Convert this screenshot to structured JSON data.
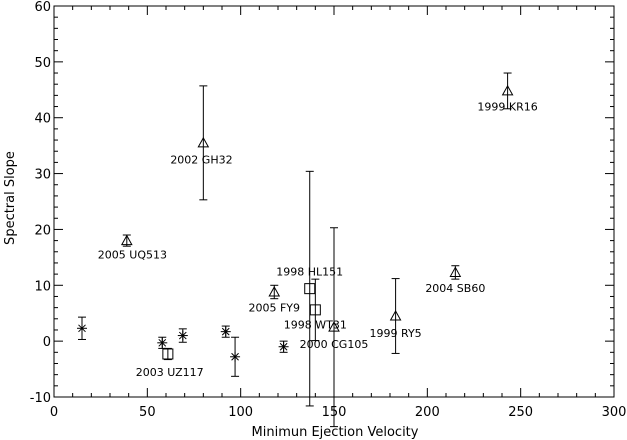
{
  "chart_data": {
    "type": "scatter",
    "title": "",
    "xlabel": "Minimun Ejection Velocity",
    "ylabel": "Spectral Slope",
    "xlim": [
      0,
      300
    ],
    "ylim": [
      -10,
      60
    ],
    "xticks": [
      0,
      50,
      100,
      150,
      200,
      250,
      300
    ],
    "yticks": [
      -10,
      0,
      10,
      20,
      30,
      40,
      50,
      60
    ],
    "grid": false,
    "legend": "none",
    "points": [
      {
        "x": 15,
        "y": 2.3,
        "err": 2.0,
        "marker": "asterisk",
        "label": ""
      },
      {
        "x": 39,
        "y": 18,
        "err": 1.0,
        "marker": "triangle",
        "label": "2005 UQ513",
        "lx": 42,
        "ly": 15.5
      },
      {
        "x": 58,
        "y": -0.3,
        "err": 1.0,
        "marker": "asterisk",
        "label": ""
      },
      {
        "x": 61,
        "y": -2.3,
        "err": 1.0,
        "marker": "square",
        "label": "2003 UZ117",
        "lx": 62,
        "ly": -5.5
      },
      {
        "x": 69,
        "y": 1.0,
        "err": 1.2,
        "marker": "asterisk",
        "label": ""
      },
      {
        "x": 80,
        "y": 35.5,
        "err": 10.2,
        "marker": "triangle",
        "label": "2002 GH32",
        "lx": 79,
        "ly": 32.5
      },
      {
        "x": 92,
        "y": 1.7,
        "err": 1.0,
        "marker": "asterisk",
        "label": ""
      },
      {
        "x": 97,
        "y": -2.8,
        "err": 3.5,
        "marker": "asterisk",
        "label": ""
      },
      {
        "x": 118,
        "y": 8.8,
        "err": 1.2,
        "marker": "triangle",
        "label": "2005 FY9",
        "lx": 118,
        "ly": 6.0
      },
      {
        "x": 123,
        "y": -1.0,
        "err": 1.0,
        "marker": "asterisk",
        "label": ""
      },
      {
        "x": 137,
        "y": 9.4,
        "err": 21.0,
        "marker": "square",
        "label": "1998 HL151",
        "lx": 137,
        "ly": 12.5
      },
      {
        "x": 140,
        "y": 5.6,
        "err": 5.5,
        "marker": "square",
        "label": "1998 WT31",
        "lx": 140,
        "ly": 3.0
      },
      {
        "x": 150,
        "y": 2.5,
        "err": 17.8,
        "marker": "triangle",
        "label": "2000 CG105",
        "lx": 150,
        "ly": -0.5
      },
      {
        "x": 183,
        "y": 4.5,
        "err": 6.7,
        "marker": "triangle",
        "label": "1999 RY5",
        "lx": 183,
        "ly": 1.5
      },
      {
        "x": 215,
        "y": 12.3,
        "err": 1.2,
        "marker": "triangle",
        "label": "2004 SB60",
        "lx": 215,
        "ly": 9.5
      },
      {
        "x": 243,
        "y": 44.8,
        "err": 3.2,
        "marker": "triangle",
        "label": "1999 KR16",
        "lx": 243,
        "ly": 42.0
      }
    ]
  }
}
